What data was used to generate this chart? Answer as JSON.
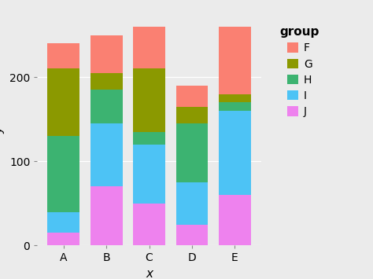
{
  "categories": [
    "A",
    "B",
    "C",
    "D",
    "E"
  ],
  "groups": [
    "J",
    "I",
    "H",
    "G",
    "F"
  ],
  "colors": {
    "J": "#EE82EE",
    "I": "#4DC3F5",
    "H": "#3CB371",
    "G": "#8B9900",
    "F": "#FA8072"
  },
  "values": {
    "J": [
      15,
      70,
      50,
      25,
      60
    ],
    "I": [
      25,
      75,
      70,
      50,
      100
    ],
    "H": [
      90,
      40,
      15,
      70,
      10
    ],
    "G": [
      80,
      20,
      75,
      20,
      10
    ],
    "F": [
      30,
      45,
      50,
      25,
      80
    ]
  },
  "xlabel": "x",
  "ylabel": "y",
  "ylim": [
    0,
    275
  ],
  "yticks": [
    0,
    100,
    200
  ],
  "bg_color": "#EBEBEB",
  "panel_color": "#EBEBEB",
  "grid_color": "#FFFFFF",
  "bar_width": 0.75,
  "axis_label_fontsize": 11,
  "tick_fontsize": 10,
  "legend_title": "group",
  "legend_title_fontsize": 11,
  "legend_fontsize": 10
}
